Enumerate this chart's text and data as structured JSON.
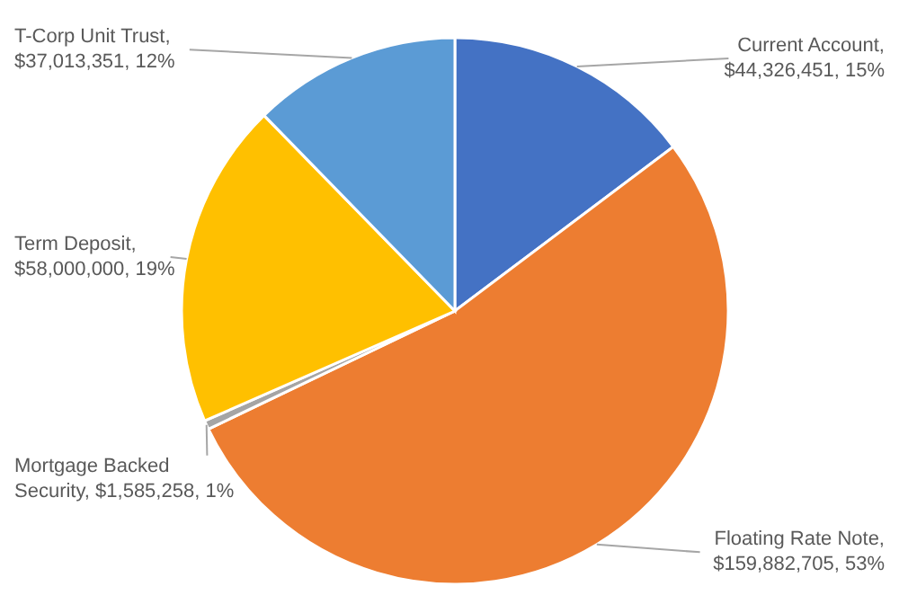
{
  "chart_data": {
    "type": "pie",
    "categories": [
      "Current Account",
      "Floating Rate Note",
      "Mortgage Backed Security",
      "Term Deposit",
      "T-Corp Unit Trust"
    ],
    "values": [
      44326451,
      159882705,
      1585258,
      58000000,
      37013351
    ],
    "colors": [
      "#4472c4",
      "#ed7d31",
      "#a5a5a5",
      "#ffc000",
      "#5b9bd5"
    ],
    "value_labels": [
      ", $44,326,451, 15%",
      ", $159,882,705, 53%",
      ", $1,585,258, 1%",
      ", $58,000,000, 19%",
      ", $37,013,351, 12%"
    ]
  }
}
